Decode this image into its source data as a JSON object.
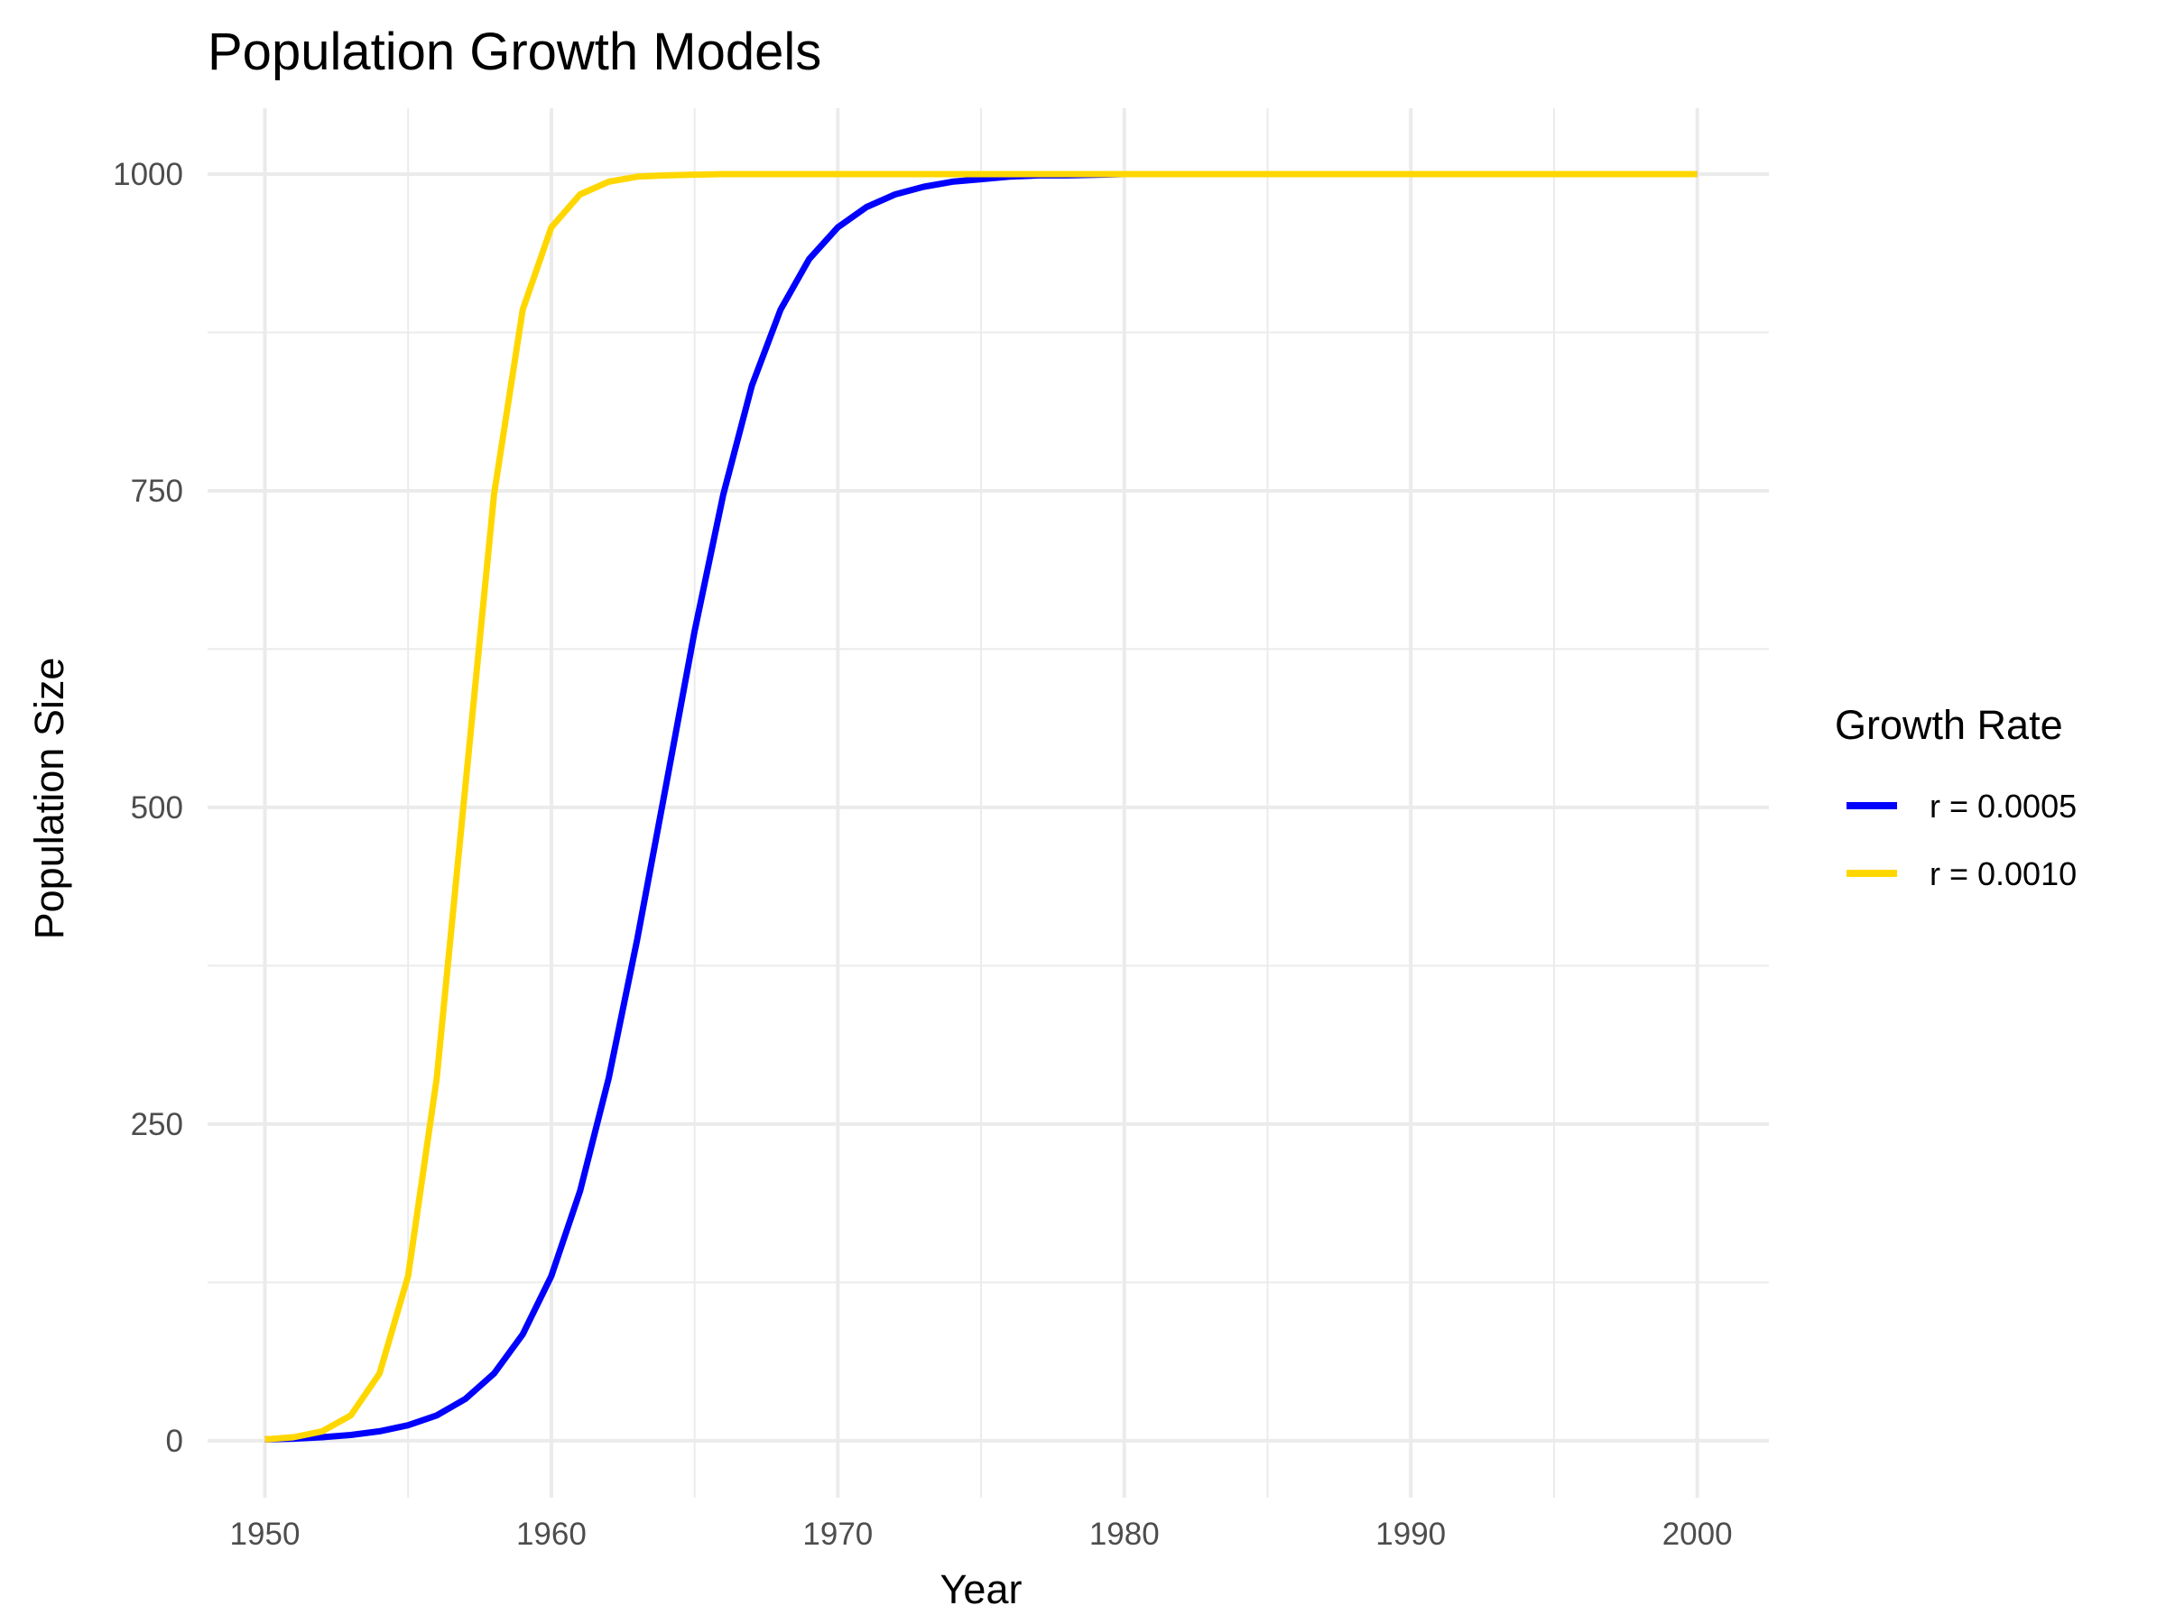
{
  "chart_data": {
    "type": "line",
    "title": "Population Growth Models",
    "xlabel": "Year",
    "ylabel": "Population Size",
    "xlim": [
      1948,
      2002.5
    ],
    "ylim": [
      -45,
      1052
    ],
    "x_ticks": [
      1950,
      1960,
      1970,
      1980,
      1990,
      2000
    ],
    "x_minor_ticks": [
      1955,
      1965,
      1975,
      1985,
      1995
    ],
    "y_ticks": [
      0,
      250,
      500,
      750,
      1000
    ],
    "y_minor_ticks": [
      125,
      375,
      625,
      875
    ],
    "grid": true,
    "legend": {
      "title": "Growth Rate",
      "position": "right"
    },
    "series": [
      {
        "name": "r = 0.0005",
        "color": "#0000ff",
        "x": [
          1950,
          1951,
          1952,
          1953,
          1954,
          1955,
          1956,
          1957,
          1958,
          1959,
          1960,
          1961,
          1962,
          1963,
          1964,
          1965,
          1966,
          1967,
          1968,
          1969,
          1970,
          1971,
          1972,
          1973,
          1974,
          1975,
          1976,
          1977,
          1978,
          1979,
          1980,
          1981,
          1982,
          1983,
          1984,
          1985,
          1986,
          1987,
          1988,
          1989,
          1990,
          1991,
          1992,
          1993,
          1994,
          1995,
          1996,
          1997,
          1998,
          1999,
          2000
        ],
        "y": [
          1,
          1.6,
          2.7,
          4.5,
          7.4,
          12.2,
          20,
          33,
          53,
          84,
          130,
          197,
          286,
          396,
          517,
          639,
          747,
          833,
          893,
          933,
          958,
          974,
          984,
          990,
          994,
          996,
          998,
          999,
          999,
          999.5,
          1000,
          1000,
          1000,
          1000,
          1000,
          1000,
          1000,
          1000,
          1000,
          1000,
          1000,
          1000,
          1000,
          1000,
          1000,
          1000,
          1000,
          1000,
          1000,
          1000,
          1000
        ]
      },
      {
        "name": "r = 0.0010",
        "color": "#ffd700",
        "x": [
          1950,
          1951,
          1952,
          1953,
          1954,
          1955,
          1956,
          1957,
          1958,
          1959,
          1960,
          1961,
          1962,
          1963,
          1964,
          1965,
          1966,
          1967,
          1968,
          1969,
          1970,
          1971,
          1972,
          1973,
          1974,
          1975,
          1976,
          1977,
          1978,
          1979,
          1980,
          1981,
          1982,
          1983,
          1984,
          1985,
          1986,
          1987,
          1988,
          1989,
          1990,
          1991,
          1992,
          1993,
          1994,
          1995,
          1996,
          1997,
          1998,
          1999,
          2000
        ],
        "y": [
          1,
          2.7,
          7.4,
          20,
          53,
          130,
          286,
          517,
          747,
          893,
          958,
          984,
          994,
          998,
          999,
          999.6,
          1000,
          1000,
          1000,
          1000,
          1000,
          1000,
          1000,
          1000,
          1000,
          1000,
          1000,
          1000,
          1000,
          1000,
          1000,
          1000,
          1000,
          1000,
          1000,
          1000,
          1000,
          1000,
          1000,
          1000,
          1000,
          1000,
          1000,
          1000,
          1000,
          1000,
          1000,
          1000,
          1000,
          1000,
          1000
        ]
      }
    ]
  }
}
